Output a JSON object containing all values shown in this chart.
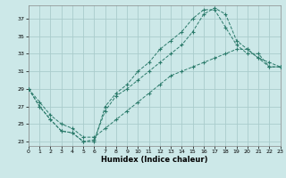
{
  "xlabel": "Humidex (Indice chaleur)",
  "bg_color": "#cce8e8",
  "grid_color": "#aacccc",
  "line_color": "#2a7a6a",
  "xlim": [
    0,
    23
  ],
  "ylim": [
    22.5,
    38.5
  ],
  "xticks": [
    0,
    1,
    2,
    3,
    4,
    5,
    6,
    7,
    8,
    9,
    10,
    11,
    12,
    13,
    14,
    15,
    16,
    17,
    18,
    19,
    20,
    21,
    22,
    23
  ],
  "yticks": [
    23,
    25,
    27,
    29,
    31,
    33,
    35,
    37
  ],
  "line1_x": [
    0,
    1,
    2,
    3,
    4,
    5,
    6,
    7,
    8,
    9,
    10,
    11,
    12,
    13,
    14,
    15,
    16,
    17,
    18,
    19,
    20,
    21,
    22,
    23
  ],
  "line1_y": [
    29,
    27,
    25.5,
    24.2,
    24,
    23,
    23,
    27,
    28.5,
    29.5,
    31,
    32,
    33.5,
    34.5,
    35.5,
    37,
    38,
    38,
    36,
    34,
    33,
    33,
    31.5,
    31.5
  ],
  "line2_x": [
    0,
    1,
    2,
    3,
    4,
    5,
    6,
    7,
    8,
    9,
    10,
    11,
    12,
    13,
    14,
    15,
    16,
    17,
    18,
    19,
    20,
    21,
    22,
    23
  ],
  "line2_y": [
    29,
    27,
    25.5,
    24.2,
    24,
    23,
    23.2,
    26.5,
    28.2,
    29,
    30,
    31,
    32,
    33,
    34,
    35.5,
    37.5,
    38.2,
    37.5,
    34.5,
    33.5,
    32.5,
    31.5,
    31.5
  ],
  "line3_x": [
    0,
    1,
    2,
    3,
    4,
    5,
    6,
    7,
    8,
    9,
    10,
    11,
    12,
    13,
    14,
    15,
    16,
    17,
    18,
    19,
    20,
    21,
    22,
    23
  ],
  "line3_y": [
    29,
    27.5,
    26,
    25,
    24.5,
    23.5,
    23.5,
    24.5,
    25.5,
    26.5,
    27.5,
    28.5,
    29.5,
    30.5,
    31,
    31.5,
    32,
    32.5,
    33,
    33.5,
    33.5,
    32.5,
    32,
    31.5
  ]
}
